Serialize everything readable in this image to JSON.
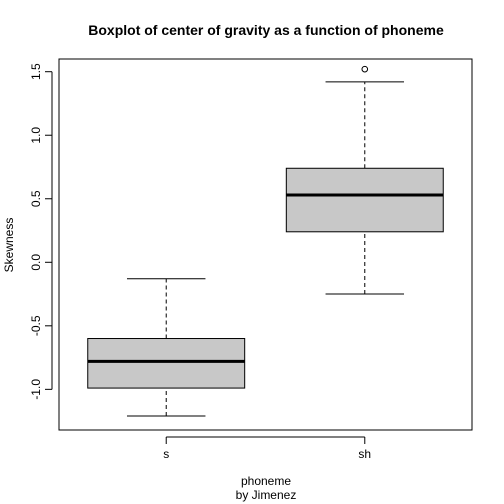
{
  "chart_data": {
    "type": "boxplot",
    "title": "Boxplot of center of gravity as a function of phoneme",
    "xlabel": "phoneme",
    "xlabel_sub": "by Jimenez",
    "ylabel": "Skewness",
    "ylim": [
      -1.32,
      1.6
    ],
    "yticks": [
      -1.0,
      -0.5,
      0.0,
      0.5,
      1.0,
      1.5
    ],
    "ytick_labels": [
      "-1.0",
      "-0.5",
      "0.0",
      "0.5",
      "1.0",
      "1.5"
    ],
    "grid": false,
    "box_fill": "#c8c8c8",
    "categories": [
      "s",
      "sh"
    ],
    "boxes": [
      {
        "category": "s",
        "whisker_low": -1.21,
        "q1": -0.99,
        "median": -0.78,
        "q3": -0.6,
        "whisker_high": -0.13,
        "outliers": []
      },
      {
        "category": "sh",
        "whisker_low": -0.25,
        "q1": 0.24,
        "median": 0.53,
        "q3": 0.74,
        "whisker_high": 1.42,
        "outliers": [
          1.52
        ]
      }
    ]
  }
}
